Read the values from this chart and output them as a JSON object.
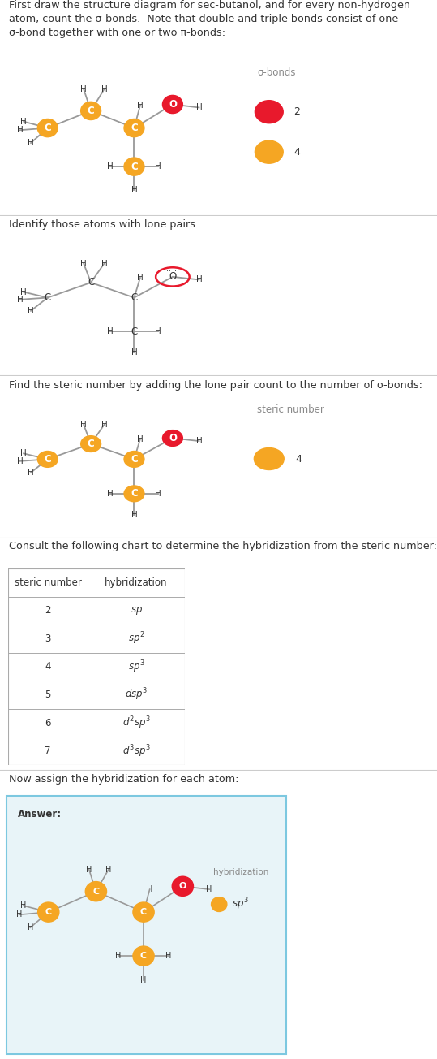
{
  "title_text_1": "First draw the structure diagram for sec-butanol, and for every non-hydrogen\natom, count the σ-bonds.  Note that double and triple bonds consist of one\nσ-bond together with one or two π-bonds:",
  "title_text_2": "Identify those atoms with lone pairs:",
  "title_text_3": "Find the steric number by adding the lone pair count to the number of σ-bonds:",
  "title_text_4": "Consult the following chart to determine the hybridization from the steric number:",
  "title_text_5": "Now assign the hybridization for each atom:",
  "sigma_bonds_legend_title": "σ-bonds",
  "sigma_bonds_items": [
    [
      "2",
      "#e8192c"
    ],
    [
      "4",
      "#f5a623"
    ]
  ],
  "steric_number_legend_title": "steric number",
  "steric_number_items": [
    [
      "4",
      "#f5a623"
    ]
  ],
  "hybridization_legend_title": "hybridization",
  "hybridization_items": [
    [
      "sp³",
      "#f5a623"
    ]
  ],
  "table_headers": [
    "steric number",
    "hybridization"
  ],
  "table_rows": [
    [
      "2",
      "sp"
    ],
    [
      "3",
      "sp²"
    ],
    [
      "4",
      "sp³"
    ],
    [
      "5",
      "dsp³"
    ],
    [
      "6",
      "d²sp³"
    ],
    [
      "7",
      "d³sp³"
    ]
  ],
  "orange_color": "#f5a623",
  "red_color": "#e8192c",
  "bg_color": "#ffffff",
  "dark_text": "#333333",
  "answer_bg": "#e8f4f8",
  "answer_border": "#7cc8e0",
  "divider_color": "#cccccc",
  "gray_text": "#888888"
}
